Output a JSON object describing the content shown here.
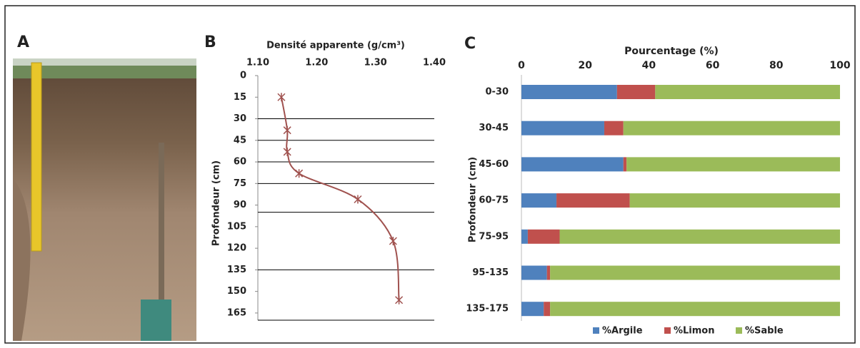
{
  "panel_labels": [
    "A",
    "B",
    "C"
  ],
  "chart_data": [
    {
      "type": "profile",
      "title": "Densité apparente (g/cm³)",
      "y_label": "Profondeur (cm)",
      "xlim": [
        1.1,
        1.4
      ],
      "xticks": [
        {
          "value": 1.1,
          "label": "1.10"
        },
        {
          "value": 1.2,
          "label": "1.20"
        },
        {
          "value": 1.3,
          "label": "1.30"
        },
        {
          "value": 1.4,
          "label": "1.40"
        }
      ],
      "ylim": [
        0,
        170
      ],
      "y_inverted": true,
      "yticks": [
        0,
        15,
        30,
        45,
        60,
        75,
        90,
        105,
        120,
        135,
        150,
        165
      ],
      "hlines": [
        30,
        45,
        60,
        75,
        95,
        135,
        170
      ],
      "color": "#a0524f",
      "x": [
        1.14,
        1.15,
        1.15,
        1.17,
        1.27,
        1.33,
        1.34
      ],
      "y": [
        15,
        38,
        53,
        68,
        86,
        115,
        156
      ]
    },
    {
      "type": "stacked_barh",
      "title": "Pourcentage (%)",
      "y_label": "Profondeur (cm)",
      "xlim": [
        0,
        100
      ],
      "xticks": [
        0,
        20,
        40,
        60,
        80,
        100
      ],
      "categories": [
        "0-30",
        "30-45",
        "45-60",
        "60-75",
        "75-95",
        "95-135",
        "135-175"
      ],
      "series": [
        {
          "name": "%Argile",
          "color": "#4f81bd",
          "values": [
            30,
            26,
            32,
            11,
            2,
            8,
            7
          ]
        },
        {
          "name": "%Limon",
          "color": "#c0504d",
          "values": [
            12,
            6,
            1,
            23,
            10,
            1,
            2
          ]
        },
        {
          "name": "%Sable",
          "color": "#9bbb59",
          "values": [
            58,
            68,
            67,
            66,
            88,
            91,
            91
          ]
        }
      ],
      "legend": "bottom"
    }
  ]
}
